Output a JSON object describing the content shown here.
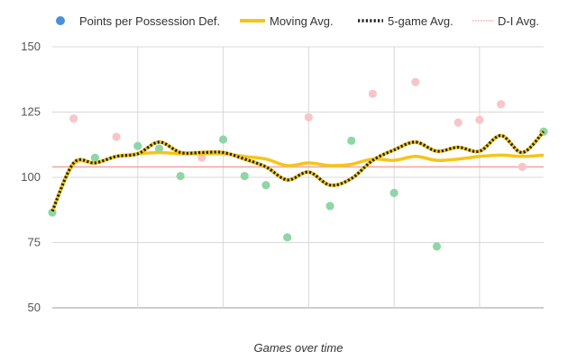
{
  "chart_data": {
    "type": "line",
    "title": "",
    "xlabel": "Games over time",
    "ylabel": "",
    "ylim": [
      50,
      150
    ],
    "y_ticks": [
      50,
      75,
      100,
      125,
      150
    ],
    "x_range": [
      1,
      24
    ],
    "grid": true,
    "legend_position": "top",
    "series": [
      {
        "name": "Points per Possession Def.",
        "kind": "scatter",
        "color": "#4a90d9",
        "x": [
          1,
          2,
          3,
          4,
          5,
          6,
          7,
          8,
          9,
          10,
          11,
          12,
          13,
          14,
          15,
          16,
          17,
          18,
          19,
          20,
          21,
          22,
          23,
          24
        ],
        "y": [
          86.5,
          122.5,
          107.5,
          115.5,
          112,
          111,
          100.5,
          107.5,
          114.5,
          100.5,
          97,
          77,
          123,
          89,
          114,
          132,
          94,
          136.5,
          73.5,
          121,
          122,
          128,
          104,
          117.5
        ],
        "point_colors": [
          "#8fd6a6",
          "#f8c5c8",
          "#8fd6a6",
          "#f8c5c8",
          "#8fd6a6",
          "#8fd6a6",
          "#8fd6a6",
          "#f8c5c8",
          "#8fd6a6",
          "#8fd6a6",
          "#8fd6a6",
          "#8fd6a6",
          "#f8c5c8",
          "#8fd6a6",
          "#8fd6a6",
          "#f8c5c8",
          "#8fd6a6",
          "#f8c5c8",
          "#8fd6a6",
          "#f8c5c8",
          "#f8c5c8",
          "#f8c5c8",
          "#f8c5c8",
          "#8fd6a6"
        ]
      },
      {
        "name": "Moving Avg.",
        "kind": "line",
        "color": "#f5c518",
        "x": [
          1,
          2,
          3,
          4,
          5,
          6,
          7,
          8,
          9,
          10,
          11,
          12,
          13,
          14,
          15,
          16,
          17,
          18,
          19,
          20,
          21,
          22,
          23,
          24
        ],
        "y": [
          87,
          105,
          105.5,
          108,
          109,
          109.5,
          109,
          109,
          109,
          108,
          107,
          104.5,
          105.5,
          104.5,
          105,
          107,
          106.5,
          108,
          106.5,
          107,
          108,
          108.5,
          108,
          108.5
        ]
      },
      {
        "name": "5-game Avg.",
        "kind": "line",
        "color": "#222222",
        "dashed": true,
        "x": [
          1,
          2,
          3,
          4,
          5,
          6,
          7,
          8,
          9,
          10,
          11,
          12,
          13,
          14,
          15,
          16,
          17,
          18,
          19,
          20,
          21,
          22,
          23,
          24
        ],
        "y": [
          87,
          105.5,
          105.5,
          108,
          109,
          113.5,
          109.5,
          109.5,
          109.5,
          107,
          104,
          99,
          102,
          97,
          99.5,
          106.5,
          110.5,
          113.5,
          110,
          111.5,
          110,
          116,
          109.5,
          117.5
        ]
      },
      {
        "name": "D-I Avg.",
        "kind": "line",
        "color": "#f4a6a6",
        "dotted": true,
        "x": [
          1,
          24
        ],
        "y": [
          104,
          104
        ]
      }
    ]
  }
}
